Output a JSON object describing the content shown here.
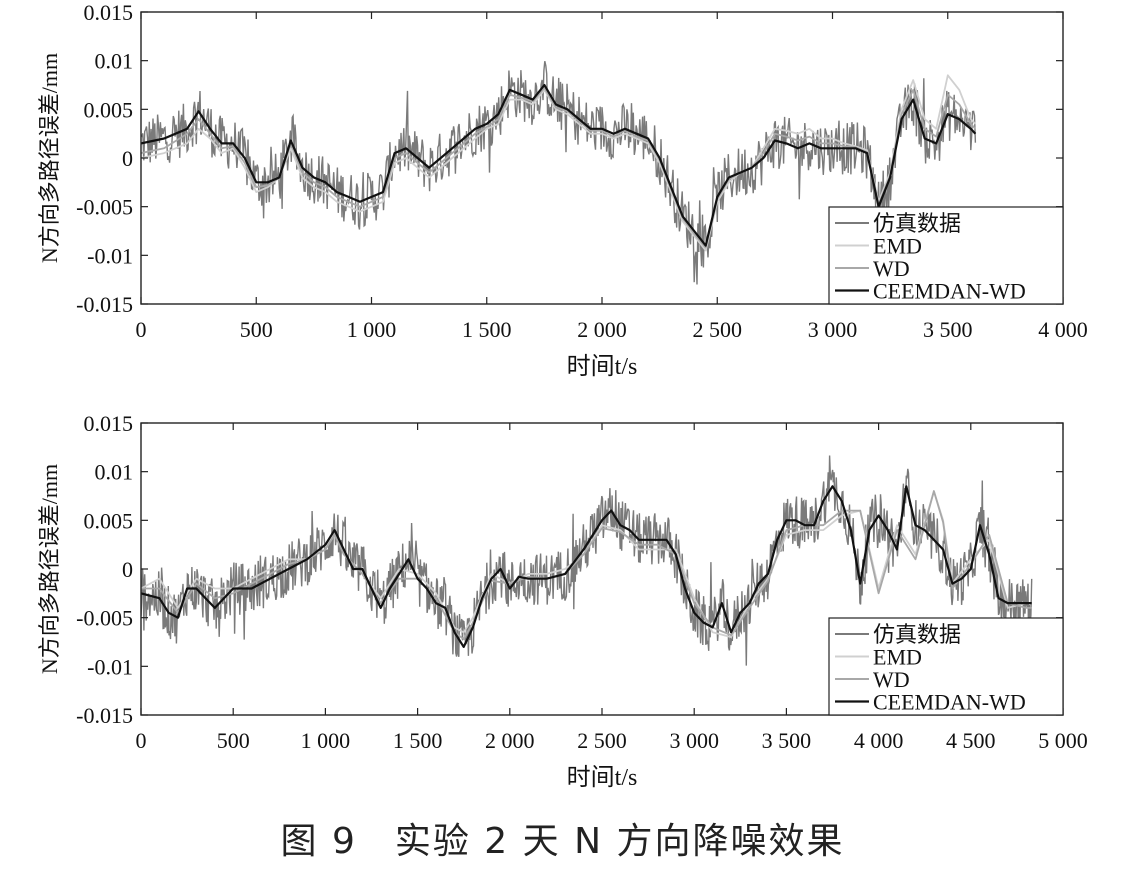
{
  "caption": "图 9　实验 2 天 N 方向降噪效果",
  "legend": [
    "仿真数据",
    "EMD",
    "WD",
    "CEEMDAN-WD"
  ],
  "series_colors": {
    "仿真数据": "#7a7a7a",
    "EMD": "#d0d0d0",
    "WD": "#a8a8a8",
    "CEEMDAN-WD": "#111111"
  },
  "chart_data": [
    {
      "type": "line",
      "xlabel": "时间t/s",
      "ylabel": "N方向多路径误差/mm",
      "xlim": [
        0,
        4000
      ],
      "ylim": [
        -0.015,
        0.015
      ],
      "xticks": [
        0,
        500,
        1000,
        1500,
        2000,
        2500,
        3000,
        3500,
        4000
      ],
      "xtick_labels": [
        "0",
        "500",
        "1 000",
        "1 500",
        "2 000",
        "2 500",
        "3 000",
        "3 500",
        "4 000"
      ],
      "yticks": [
        0.015,
        0.01,
        0.005,
        0,
        -0.005,
        -0.01,
        -0.015
      ],
      "ytick_labels": [
        "0.015",
        "0.01",
        "0.005",
        "0",
        "-0.005",
        "-0.01",
        "-0.015"
      ],
      "legend_position": "bottom-right",
      "series": [
        {
          "name": "CEEMDAN-WD",
          "x": [
            0,
            100,
            200,
            250,
            300,
            350,
            400,
            450,
            500,
            550,
            600,
            650,
            700,
            750,
            800,
            850,
            900,
            950,
            1000,
            1050,
            1100,
            1150,
            1200,
            1250,
            1300,
            1350,
            1400,
            1450,
            1500,
            1550,
            1600,
            1650,
            1700,
            1750,
            1800,
            1850,
            1900,
            1950,
            2000,
            2050,
            2100,
            2150,
            2200,
            2250,
            2300,
            2350,
            2400,
            2450,
            2500,
            2550,
            2600,
            2650,
            2700,
            2750,
            2800,
            2850,
            2900,
            2950,
            3000,
            3050,
            3100,
            3150,
            3200,
            3250,
            3300,
            3350,
            3400,
            3450,
            3500,
            3550,
            3600,
            3620
          ],
          "y": [
            0.0015,
            0.002,
            0.003,
            0.0048,
            0.003,
            0.0015,
            0.0015,
            0,
            -0.0025,
            -0.0025,
            -0.002,
            0.0018,
            -0.001,
            -0.002,
            -0.0025,
            -0.0035,
            -0.004,
            -0.0045,
            -0.004,
            -0.0035,
            0.0005,
            0.001,
            0,
            -0.001,
            0,
            0.001,
            0.002,
            0.003,
            0.0035,
            0.0045,
            0.007,
            0.0065,
            0.006,
            0.0075,
            0.0055,
            0.005,
            0.004,
            0.003,
            0.003,
            0.0025,
            0.003,
            0.0025,
            0.002,
            0,
            -0.003,
            -0.006,
            -0.0075,
            -0.009,
            -0.004,
            -0.002,
            -0.0015,
            -0.001,
            0,
            0.0018,
            0.0015,
            0.001,
            0.0015,
            0.001,
            0.001,
            0.001,
            0.001,
            0.0005,
            -0.005,
            -0.002,
            0.004,
            0.006,
            0.002,
            0.0015,
            0.0045,
            0.004,
            0.003,
            0.0025
          ]
        },
        {
          "name": "EMD",
          "x": [
            0,
            100,
            200,
            250,
            300,
            350,
            400,
            450,
            500,
            550,
            600,
            650,
            700,
            750,
            800,
            850,
            900,
            950,
            1000,
            1050,
            1100,
            1150,
            1200,
            1250,
            1300,
            1350,
            1400,
            1450,
            1500,
            1550,
            1600,
            1650,
            1700,
            1750,
            1800,
            1850,
            1900,
            1950,
            2000,
            2050,
            2100,
            2150,
            2200,
            2250,
            2300,
            2350,
            2400,
            2450,
            2500,
            2550,
            2600,
            2650,
            2700,
            2750,
            2800,
            2850,
            2900,
            2950,
            3000,
            3050,
            3100,
            3150,
            3200,
            3250,
            3300,
            3350,
            3400,
            3450,
            3500,
            3550,
            3600,
            3620
          ],
          "y": [
            0,
            0.0005,
            0.0015,
            0.003,
            0.002,
            0.0005,
            0.001,
            -0.001,
            -0.0035,
            -0.003,
            -0.002,
            0.001,
            -0.002,
            -0.003,
            -0.0035,
            -0.0045,
            -0.005,
            -0.0055,
            -0.005,
            -0.0045,
            -0.0005,
            0,
            -0.001,
            -0.002,
            -0.001,
            0,
            0.001,
            0.002,
            0.003,
            0.0035,
            0.006,
            0.006,
            0.0055,
            0.007,
            0.005,
            0.0045,
            0.0035,
            0.0025,
            0.0025,
            0.002,
            0.0025,
            0.002,
            0.0015,
            -0.0005,
            -0.0035,
            -0.0065,
            -0.008,
            -0.0095,
            -0.0045,
            -0.0025,
            -0.0015,
            -0.001,
            0.001,
            0.003,
            0.0028,
            0.0025,
            0.003,
            0.002,
            0.002,
            0.0015,
            0.0012,
            0.0008,
            -0.0045,
            -0.0015,
            0.005,
            0.008,
            0.004,
            0.003,
            0.0085,
            0.007,
            0.004,
            0.0035
          ]
        },
        {
          "name": "WD",
          "x": [
            0,
            100,
            200,
            250,
            300,
            350,
            400,
            450,
            500,
            550,
            600,
            650,
            700,
            750,
            800,
            850,
            900,
            950,
            1000,
            1050,
            1100,
            1150,
            1200,
            1250,
            1300,
            1350,
            1400,
            1450,
            1500,
            1550,
            1600,
            1650,
            1700,
            1750,
            1800,
            1850,
            1900,
            1950,
            2000,
            2050,
            2100,
            2150,
            2200,
            2250,
            2300,
            2350,
            2400,
            2450,
            2500,
            2550,
            2600,
            2650,
            2700,
            2750,
            2800,
            2850,
            2900,
            2950,
            3000,
            3050,
            3100,
            3150,
            3200,
            3250,
            3300,
            3350,
            3400,
            3450,
            3500,
            3550,
            3600,
            3620
          ],
          "y": [
            0.0005,
            0.001,
            0.0025,
            0.004,
            0.0025,
            0.001,
            0.0012,
            -0.0005,
            -0.003,
            -0.0028,
            -0.002,
            0.0015,
            -0.0015,
            -0.0025,
            -0.003,
            -0.004,
            -0.0045,
            -0.005,
            -0.0045,
            -0.004,
            0,
            0.0005,
            -0.0005,
            -0.0015,
            -0.0005,
            0.0005,
            0.0015,
            0.0025,
            0.0032,
            0.004,
            0.0065,
            0.0062,
            0.0058,
            0.0072,
            0.0052,
            0.0048,
            0.0038,
            0.0028,
            0.0028,
            0.0022,
            0.0028,
            0.0022,
            0.0018,
            -0.0002,
            -0.0032,
            -0.0062,
            -0.0078,
            -0.0092,
            -0.0042,
            -0.0022,
            -0.0015,
            -0.001,
            0.0005,
            0.0025,
            0.0022,
            0.0018,
            0.0022,
            0.0015,
            0.0015,
            0.0012,
            0.0011,
            0.0006,
            -0.0048,
            -0.0018,
            0.0045,
            0.007,
            0.003,
            0.0022,
            0.0065,
            0.0055,
            0.0035,
            0.003
          ]
        }
      ],
      "noise_series": {
        "name": "仿真数据",
        "x_range": [
          0,
          3620
        ],
        "base": "CEEMDAN-WD",
        "y_extent": [
          -0.013,
          0.011
        ]
      }
    },
    {
      "type": "line",
      "xlabel": "时间t/s",
      "ylabel": "N方向多路径误差/mm",
      "xlim": [
        0,
        5000
      ],
      "ylim": [
        -0.015,
        0.015
      ],
      "xticks": [
        0,
        500,
        1000,
        1500,
        2000,
        2500,
        3000,
        3500,
        4000,
        4500,
        5000
      ],
      "xtick_labels": [
        "0",
        "500",
        "1 000",
        "1 500",
        "2 000",
        "2 500",
        "3 000",
        "3 500",
        "4 000",
        "4 500",
        "5 000"
      ],
      "yticks": [
        0.015,
        0.01,
        0.005,
        0,
        -0.005,
        -0.01,
        -0.015
      ],
      "ytick_labels": [
        "0.015",
        "0.01",
        "0.005",
        "0",
        "-0.005",
        "-0.01",
        "-0.015"
      ],
      "legend_position": "bottom-right",
      "series": [
        {
          "name": "CEEMDAN-WD",
          "x": [
            0,
            100,
            150,
            200,
            250,
            300,
            350,
            400,
            450,
            500,
            600,
            700,
            800,
            900,
            1000,
            1050,
            1100,
            1150,
            1200,
            1250,
            1300,
            1350,
            1400,
            1450,
            1500,
            1550,
            1600,
            1650,
            1700,
            1750,
            1800,
            1850,
            1900,
            1950,
            2000,
            2050,
            2100,
            2200,
            2300,
            2400,
            2500,
            2550,
            2600,
            2650,
            2700,
            2800,
            2850,
            2900,
            2950,
            3000,
            3050,
            3100,
            3150,
            3200,
            3250,
            3300,
            3350,
            3400,
            3450,
            3500,
            3550,
            3600,
            3650,
            3700,
            3750,
            3800,
            3850,
            3900,
            3950,
            4000,
            4050,
            4100,
            4150,
            4200,
            4250,
            4300,
            4350,
            4400,
            4450,
            4500,
            4550,
            4600,
            4650,
            4700,
            4750,
            4800,
            4830
          ],
          "y": [
            -0.0025,
            -0.003,
            -0.0045,
            -0.005,
            -0.002,
            -0.002,
            -0.003,
            -0.004,
            -0.003,
            -0.002,
            -0.002,
            -0.001,
            0,
            0.001,
            0.0025,
            0.004,
            0.002,
            0,
            0,
            -0.002,
            -0.004,
            -0.002,
            -0.0005,
            0.001,
            -0.001,
            -0.002,
            -0.0035,
            -0.004,
            -0.0065,
            -0.008,
            -0.006,
            -0.003,
            -0.001,
            0,
            -0.002,
            -0.0008,
            -0.001,
            -0.001,
            -0.0005,
            0.002,
            0.005,
            0.006,
            0.0045,
            0.004,
            0.003,
            0.003,
            0.003,
            0.0015,
            -0.002,
            -0.0045,
            -0.0055,
            -0.006,
            -0.0035,
            -0.0065,
            -0.0045,
            -0.0035,
            -0.0015,
            -0.0005,
            0.003,
            0.005,
            0.005,
            0.0045,
            0.0045,
            0.007,
            0.0085,
            0.007,
            0.004,
            -0.0015,
            0.004,
            0.0055,
            0.004,
            0.002,
            0.0085,
            0.0045,
            0.004,
            0.003,
            0.002,
            -0.0015,
            -0.001,
            0,
            0.0045,
            0.0015,
            -0.003,
            -0.0035,
            -0.0035,
            -0.0035,
            -0.0035
          ]
        },
        {
          "name": "EMD",
          "x": [
            0,
            100,
            200,
            300,
            400,
            500,
            600,
            700,
            800,
            900,
            1000,
            1050,
            1100,
            1200,
            1300,
            1400,
            1500,
            1600,
            1700,
            1750,
            1800,
            1900,
            2000,
            2100,
            2200,
            2300,
            2400,
            2500,
            2600,
            2700,
            2800,
            2900,
            3000,
            3100,
            3200,
            3300,
            3400,
            3500,
            3600,
            3700,
            3800,
            3900,
            4000,
            4100,
            4200,
            4300,
            4350,
            4400,
            4500,
            4600,
            4700,
            4800,
            4830
          ],
          "y": [
            -0.002,
            -0.001,
            -0.004,
            -0.001,
            -0.002,
            -0.002,
            -0.001,
            0,
            0.001,
            0.001,
            0.002,
            0.004,
            0.0015,
            -0.0005,
            -0.003,
            0,
            -0.0005,
            -0.0025,
            -0.006,
            -0.0065,
            -0.005,
            -0.0005,
            -0.0015,
            -0.0005,
            -0.0005,
            0,
            0.0015,
            0.0045,
            0.004,
            0.002,
            0.002,
            0.002,
            -0.003,
            -0.0065,
            -0.007,
            -0.0035,
            -0.001,
            0.0035,
            0.004,
            0.004,
            0.0055,
            0.006,
            -0.002,
            0.0045,
            0.0015,
            0.008,
            0.005,
            -0.0015,
            0.001,
            0.003,
            -0.004,
            -0.0035,
            -0.0035
          ]
        },
        {
          "name": "WD",
          "x": [
            0,
            100,
            200,
            300,
            400,
            500,
            600,
            700,
            800,
            900,
            1000,
            1050,
            1100,
            1200,
            1300,
            1400,
            1500,
            1600,
            1700,
            1750,
            1800,
            1900,
            2000,
            2100,
            2200,
            2300,
            2400,
            2500,
            2600,
            2700,
            2800,
            2900,
            3000,
            3100,
            3200,
            3300,
            3400,
            3500,
            3600,
            3700,
            3800,
            3900,
            4000,
            4100,
            4200,
            4300,
            4350,
            4400,
            4500,
            4600,
            4700,
            4800,
            4830
          ],
          "y": [
            -0.002,
            -0.002,
            -0.0045,
            -0.0015,
            -0.003,
            -0.0025,
            -0.0015,
            -0.0005,
            0.0005,
            0.001,
            0.002,
            0.0035,
            0.0015,
            -0.0005,
            -0.0035,
            -0.001,
            -0.001,
            -0.003,
            -0.0065,
            -0.0072,
            -0.0055,
            -0.0012,
            -0.0015,
            -0.0008,
            -0.001,
            -0.0005,
            0.0015,
            0.0042,
            0.0038,
            0.0025,
            0.0025,
            0.0015,
            -0.0035,
            -0.006,
            -0.0068,
            -0.004,
            -0.0012,
            0.004,
            0.0045,
            0.0045,
            0.006,
            0.006,
            -0.0025,
            0.004,
            0.001,
            0.008,
            0.0048,
            -0.002,
            0.0005,
            0.0035,
            -0.0035,
            -0.004,
            -0.004
          ]
        }
      ],
      "noise_series": {
        "name": "仿真数据",
        "x_range": [
          0,
          4830
        ],
        "base": "CEEMDAN-WD",
        "y_extent": [
          -0.014,
          0.013
        ]
      }
    }
  ]
}
